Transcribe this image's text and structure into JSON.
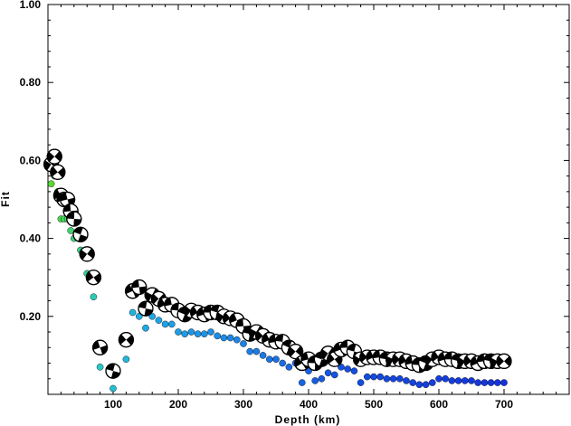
{
  "chart_data": {
    "type": "scatter",
    "title": "",
    "xlabel": "Depth (km)",
    "ylabel": "Fit",
    "xlim": [
      0,
      800
    ],
    "ylim": [
      0,
      1.0
    ],
    "x_ticks": [
      100,
      200,
      300,
      400,
      500,
      600,
      700
    ],
    "y_ticks": [
      0.2,
      0.4,
      0.6,
      0.8,
      1.0
    ],
    "x_tick_labels": [
      "100",
      "200",
      "300",
      "400",
      "500",
      "600",
      "700"
    ],
    "y_tick_labels": [
      "0.20",
      "0.40",
      "0.60",
      "0.80",
      "1.00"
    ],
    "grid": false,
    "series": [
      {
        "marker": "circle-dot",
        "points": [
          [
            5,
            0.54
          ],
          [
            10,
            0.56
          ],
          [
            15,
            0.52
          ],
          [
            20,
            0.45
          ],
          [
            25,
            0.45
          ],
          [
            30,
            0.45
          ],
          [
            35,
            0.42
          ],
          [
            40,
            0.4
          ],
          [
            45,
            0.41
          ],
          [
            50,
            0.37
          ],
          [
            60,
            0.31
          ],
          [
            70,
            0.25
          ],
          [
            80,
            0.07
          ],
          [
            100,
            0.015
          ],
          [
            120,
            0.09
          ],
          [
            130,
            0.21
          ],
          [
            140,
            0.2
          ],
          [
            150,
            0.17
          ],
          [
            160,
            0.2
          ],
          [
            170,
            0.19
          ],
          [
            180,
            0.18
          ],
          [
            190,
            0.18
          ],
          [
            200,
            0.16
          ],
          [
            210,
            0.155
          ],
          [
            220,
            0.16
          ],
          [
            230,
            0.155
          ],
          [
            240,
            0.155
          ],
          [
            250,
            0.16
          ],
          [
            260,
            0.15
          ],
          [
            270,
            0.145
          ],
          [
            280,
            0.145
          ],
          [
            290,
            0.14
          ],
          [
            300,
            0.13
          ],
          [
            310,
            0.11
          ],
          [
            320,
            0.11
          ],
          [
            330,
            0.1
          ],
          [
            340,
            0.09
          ],
          [
            350,
            0.09
          ],
          [
            360,
            0.08
          ],
          [
            370,
            0.07
          ],
          [
            380,
            0.08
          ],
          [
            390,
            0.03
          ],
          [
            400,
            0.06
          ],
          [
            410,
            0.035
          ],
          [
            420,
            0.04
          ],
          [
            430,
            0.055
          ],
          [
            440,
            0.05
          ],
          [
            450,
            0.07
          ],
          [
            460,
            0.065
          ],
          [
            470,
            0.06
          ],
          [
            480,
            0.03
          ],
          [
            490,
            0.045
          ],
          [
            500,
            0.045
          ],
          [
            510,
            0.045
          ],
          [
            520,
            0.04
          ],
          [
            530,
            0.04
          ],
          [
            540,
            0.04
          ],
          [
            550,
            0.035
          ],
          [
            560,
            0.03
          ],
          [
            570,
            0.025
          ],
          [
            580,
            0.025
          ],
          [
            590,
            0.03
          ],
          [
            600,
            0.04
          ],
          [
            610,
            0.04
          ],
          [
            620,
            0.035
          ],
          [
            630,
            0.035
          ],
          [
            640,
            0.035
          ],
          [
            650,
            0.035
          ],
          [
            660,
            0.03
          ],
          [
            670,
            0.03
          ],
          [
            680,
            0.03
          ],
          [
            690,
            0.03
          ],
          [
            700,
            0.03
          ]
        ]
      },
      {
        "marker": "beachball",
        "points": [
          [
            5,
            0.59
          ],
          [
            10,
            0.61
          ],
          [
            15,
            0.57
          ],
          [
            20,
            0.51
          ],
          [
            25,
            0.5
          ],
          [
            30,
            0.5
          ],
          [
            35,
            0.47
          ],
          [
            40,
            0.45
          ],
          [
            50,
            0.41
          ],
          [
            60,
            0.36
          ],
          [
            70,
            0.3
          ],
          [
            80,
            0.12
          ],
          [
            100,
            0.06
          ],
          [
            120,
            0.14
          ],
          [
            130,
            0.265
          ],
          [
            140,
            0.275
          ],
          [
            150,
            0.22
          ],
          [
            160,
            0.255
          ],
          [
            170,
            0.245
          ],
          [
            180,
            0.23
          ],
          [
            190,
            0.23
          ],
          [
            200,
            0.215
          ],
          [
            210,
            0.205
          ],
          [
            220,
            0.215
          ],
          [
            230,
            0.21
          ],
          [
            240,
            0.205
          ],
          [
            250,
            0.21
          ],
          [
            260,
            0.21
          ],
          [
            270,
            0.2
          ],
          [
            280,
            0.195
          ],
          [
            290,
            0.19
          ],
          [
            300,
            0.175
          ],
          [
            310,
            0.155
          ],
          [
            320,
            0.16
          ],
          [
            330,
            0.15
          ],
          [
            340,
            0.14
          ],
          [
            350,
            0.135
          ],
          [
            360,
            0.135
          ],
          [
            370,
            0.12
          ],
          [
            380,
            0.11
          ],
          [
            390,
            0.08
          ],
          [
            400,
            0.09
          ],
          [
            410,
            0.08
          ],
          [
            420,
            0.09
          ],
          [
            430,
            0.105
          ],
          [
            440,
            0.09
          ],
          [
            450,
            0.115
          ],
          [
            460,
            0.12
          ],
          [
            470,
            0.11
          ],
          [
            480,
            0.09
          ],
          [
            490,
            0.095
          ],
          [
            500,
            0.095
          ],
          [
            510,
            0.095
          ],
          [
            520,
            0.09
          ],
          [
            530,
            0.09
          ],
          [
            540,
            0.09
          ],
          [
            550,
            0.085
          ],
          [
            560,
            0.08
          ],
          [
            570,
            0.075
          ],
          [
            580,
            0.08
          ],
          [
            590,
            0.09
          ],
          [
            600,
            0.095
          ],
          [
            610,
            0.09
          ],
          [
            620,
            0.09
          ],
          [
            630,
            0.085
          ],
          [
            640,
            0.085
          ],
          [
            650,
            0.085
          ],
          [
            660,
            0.08
          ],
          [
            670,
            0.085
          ],
          [
            680,
            0.085
          ],
          [
            690,
            0.085
          ],
          [
            700,
            0.085
          ]
        ]
      }
    ]
  }
}
